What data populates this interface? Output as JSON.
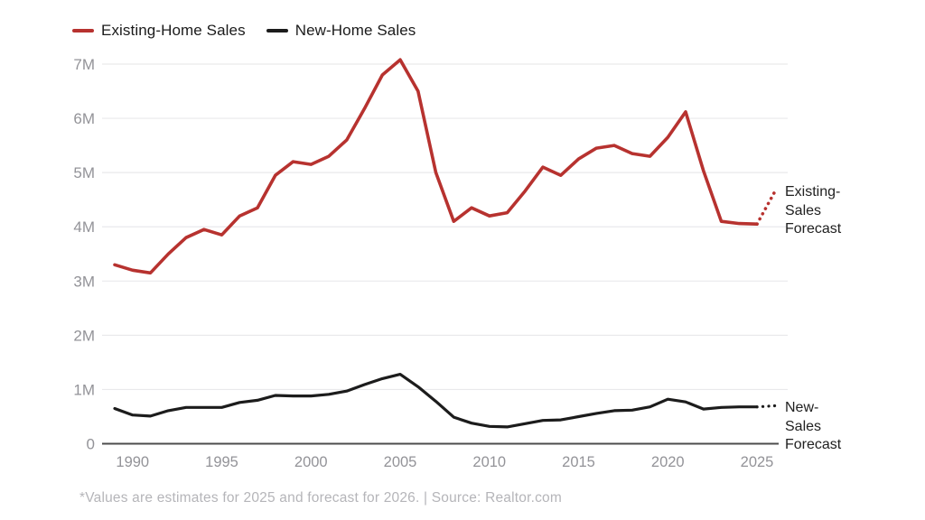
{
  "legend": {
    "items": [
      {
        "key": "existing-home-sales",
        "label": "Existing-Home Sales",
        "color": "#b7322f"
      },
      {
        "key": "new-home-sales",
        "label": "New-Home Sales",
        "color": "#1c1c1c"
      }
    ]
  },
  "chart_data": {
    "type": "line",
    "title": "",
    "xlabel": "",
    "ylabel": "",
    "x": [
      1989,
      1990,
      1991,
      1992,
      1993,
      1994,
      1995,
      1996,
      1997,
      1998,
      1999,
      2000,
      2001,
      2002,
      2003,
      2004,
      2005,
      2006,
      2007,
      2008,
      2009,
      2010,
      2011,
      2012,
      2013,
      2014,
      2015,
      2016,
      2017,
      2018,
      2019,
      2020,
      2021,
      2022,
      2023,
      2024,
      2025,
      2026
    ],
    "series": [
      {
        "key": "existing-home-sales",
        "name": "Existing-Home Sales",
        "color": "#b7322f",
        "line_width": 3.6,
        "forecast_from": 2025,
        "values": [
          3.3,
          3.2,
          3.15,
          3.5,
          3.8,
          3.95,
          3.85,
          4.2,
          4.35,
          4.95,
          5.2,
          5.15,
          5.3,
          5.6,
          6.18,
          6.8,
          7.08,
          6.5,
          5.0,
          4.1,
          4.35,
          4.2,
          4.26,
          4.66,
          5.1,
          4.95,
          5.25,
          5.45,
          5.5,
          5.35,
          5.3,
          5.65,
          6.12,
          5.03,
          4.1,
          4.06,
          4.05,
          4.65
        ]
      },
      {
        "key": "new-home-sales",
        "name": "New-Home Sales",
        "color": "#1c1c1c",
        "line_width": 3.2,
        "forecast_from": 2025,
        "values": [
          0.65,
          0.53,
          0.51,
          0.61,
          0.67,
          0.67,
          0.67,
          0.76,
          0.8,
          0.89,
          0.88,
          0.88,
          0.91,
          0.97,
          1.09,
          1.2,
          1.28,
          1.05,
          0.78,
          0.49,
          0.38,
          0.32,
          0.31,
          0.37,
          0.43,
          0.44,
          0.5,
          0.56,
          0.61,
          0.62,
          0.68,
          0.82,
          0.77,
          0.64,
          0.67,
          0.68,
          0.68,
          0.7
        ]
      }
    ],
    "xticks": [
      1990,
      1995,
      2000,
      2005,
      2010,
      2015,
      2020,
      2025
    ],
    "yticks": [
      {
        "value": 0,
        "label": "0"
      },
      {
        "value": 1,
        "label": "1M"
      },
      {
        "value": 2,
        "label": "2M"
      },
      {
        "value": 3,
        "label": "3M"
      },
      {
        "value": 4,
        "label": "4M"
      },
      {
        "value": 5,
        "label": "5M"
      },
      {
        "value": 6,
        "label": "6M"
      },
      {
        "value": 7,
        "label": "7M"
      }
    ],
    "ylim": [
      0,
      7.3
    ],
    "xlim": [
      1989,
      2026
    ],
    "grid": "horizontal",
    "legend_position": "top-left",
    "colors": {
      "grid": "#e9e9eb",
      "axis": "#4c4c4c",
      "tick_label": "#939398"
    }
  },
  "annotations": {
    "existing_forecast": {
      "lines": [
        "Existing-",
        "Sales",
        "Forecast"
      ]
    },
    "new_forecast": {
      "lines": [
        "New-",
        "Sales",
        "Forecast"
      ]
    }
  },
  "footer": {
    "text": "*Values are estimates for 2025 and forecast for 2026. | Source: Realtor.com"
  }
}
